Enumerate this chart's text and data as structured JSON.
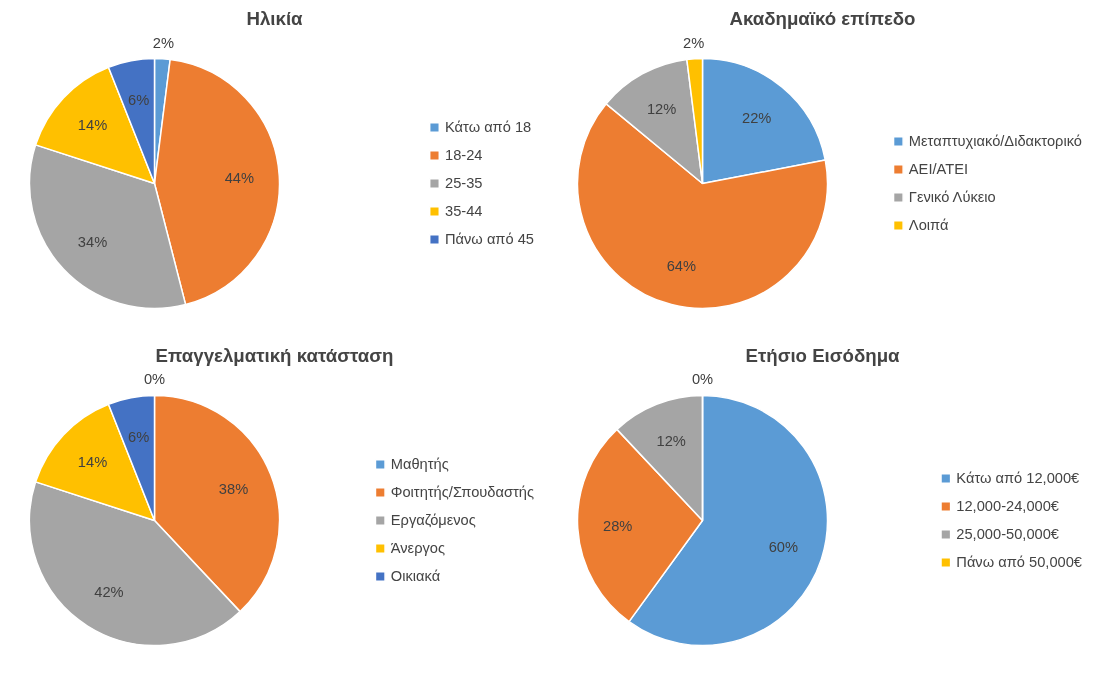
{
  "chart_data": [
    {
      "type": "pie",
      "title": "Ηλικία",
      "categories": [
        "Κάτω από 18",
        "18-24",
        "25-35",
        "35-44",
        "Πάνω από 45"
      ],
      "values": [
        2,
        44,
        34,
        14,
        6
      ],
      "value_labels": [
        "2%",
        "44%",
        "34%",
        "14%",
        "6%"
      ],
      "colors": [
        "#5b9bd5",
        "#ed7d31",
        "#a5a5a5",
        "#ffc000",
        "#4472c4"
      ],
      "legend": "right"
    },
    {
      "type": "pie",
      "title": "Ακαδημαϊκό επίπεδο",
      "categories": [
        "Μεταπτυχιακό/Διδακτορικό",
        "ΑΕΙ/ΑΤΕΙ",
        "Γενικό Λύκειο",
        "Λοιπά"
      ],
      "values": [
        22,
        64,
        12,
        2
      ],
      "value_labels": [
        "22%",
        "64%",
        "12%",
        "2%"
      ],
      "colors": [
        "#5b9bd5",
        "#ed7d31",
        "#a5a5a5",
        "#ffc000"
      ],
      "legend": "right"
    },
    {
      "type": "pie",
      "title": "Επαγγελματική κατάσταση",
      "categories": [
        "Μαθητής",
        "Φοιτητής/Σπουδαστής",
        "Εργαζόμενος",
        "Άνεργος",
        "Οικιακά"
      ],
      "values": [
        0,
        38,
        42,
        14,
        6
      ],
      "value_labels": [
        "0%",
        "38%",
        "42%",
        "14%",
        "6%"
      ],
      "colors": [
        "#5b9bd5",
        "#ed7d31",
        "#a5a5a5",
        "#ffc000",
        "#4472c4"
      ],
      "legend": "right"
    },
    {
      "type": "pie",
      "title": "Ετήσιο Εισόδημα",
      "categories": [
        "Κάτω από 12,000€",
        "12,000-24,000€",
        "25,000-50,000€",
        "Πάνω από 50,000€"
      ],
      "values": [
        60,
        28,
        12,
        0
      ],
      "value_labels": [
        "60%",
        "28%",
        "12%",
        "0%"
      ],
      "colors": [
        "#5b9bd5",
        "#ed7d31",
        "#a5a5a5",
        "#ffc000"
      ],
      "legend": "right"
    }
  ]
}
